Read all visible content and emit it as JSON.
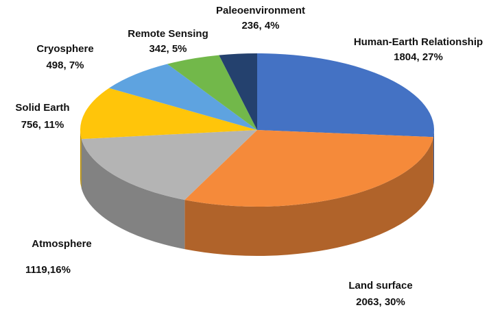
{
  "chart_data": {
    "type": "pie",
    "categories": [
      "Human-Earth Relationship",
      "Land surface",
      "Atmosphere",
      "Solid Earth",
      "Cryosphere",
      "Remote Sensing",
      "Paleoenvironment"
    ],
    "values": [
      1804,
      2063,
      1119,
      756,
      498,
      342,
      236
    ],
    "value_labels": [
      "1804, 27%",
      "2063, 30%",
      "1119,16%",
      "756, 11%",
      "498, 7%",
      "342, 5%",
      "236, 4%"
    ],
    "colors": [
      "#4472c4",
      "#f58a3a",
      "#b4b4b4",
      "#ffc50a",
      "#5ea3e0",
      "#72b84a",
      "#24416e"
    ]
  }
}
